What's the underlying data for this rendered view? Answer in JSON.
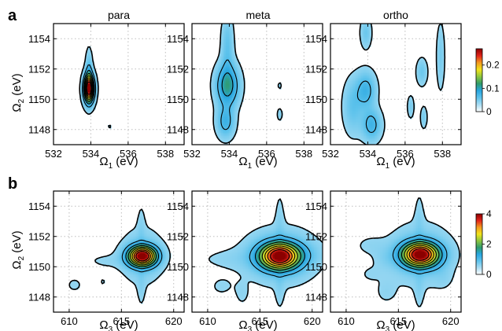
{
  "figure": {
    "panel_labels": [
      "a",
      "b"
    ],
    "panel_titles": [
      "para",
      "meta",
      "ortho"
    ],
    "row_a": {
      "x_label_symbol": "Ω",
      "x_label_sub": "1",
      "x_label_unit": "(eV)",
      "y_label_symbol": "Ω",
      "y_label_sub": "2",
      "y_label_unit": "(eV)",
      "x_ticks": [
        "532",
        "534",
        "536",
        "538"
      ],
      "y_ticks": [
        "1148",
        "1150",
        "1152",
        "1154"
      ],
      "colorbar_ticks": [
        "0",
        "0.1",
        "0.2"
      ]
    },
    "row_b": {
      "x_label_symbol": "Ω",
      "x_label_sub": "3",
      "x_label_unit": "(eV)",
      "y_label_symbol": "Ω",
      "y_label_sub": "2",
      "y_label_unit": "(eV)",
      "x_ticks": [
        "610",
        "615",
        "620"
      ],
      "y_ticks": [
        "1148",
        "1150",
        "1152",
        "1154"
      ],
      "colorbar_ticks": [
        "0",
        "2",
        "4"
      ]
    },
    "colormap": [
      "#ffffff",
      "#a9ddf3",
      "#5ec3ec",
      "#28a6e0",
      "#2f9b6a",
      "#8cc63f",
      "#f2e31b",
      "#f39a1f",
      "#e2231a",
      "#8b0000"
    ]
  },
  "chart_data": [
    {
      "type": "heatmap",
      "title": "para",
      "panel": "a",
      "xlabel": "Ω1 (eV)",
      "ylabel": "Ω2 (eV)",
      "xlim": [
        532,
        539
      ],
      "ylim": [
        1147,
        1155
      ],
      "zlim": [
        0,
        0.27
      ],
      "peaks": [
        {
          "x": 533.9,
          "y": 1150.7,
          "amp": 0.27,
          "sx": 0.18,
          "sy": 0.6
        },
        {
          "x": 533.9,
          "y": 1151.6,
          "amp": 0.04,
          "sx": 0.12,
          "sy": 1.0
        },
        {
          "x": 535.0,
          "y": 1148.2,
          "amp": 0.012,
          "sx": 0.05,
          "sy": 0.1
        }
      ]
    },
    {
      "type": "heatmap",
      "title": "meta",
      "panel": "a",
      "xlabel": "Ω1 (eV)",
      "ylabel": "Ω2 (eV)",
      "xlim": [
        532,
        539
      ],
      "ylim": [
        1147,
        1155
      ],
      "zlim": [
        0,
        0.27
      ],
      "peaks": [
        {
          "x": 533.9,
          "y": 1150.9,
          "amp": 0.09,
          "sx": 0.4,
          "sy": 0.9
        },
        {
          "x": 533.8,
          "y": 1148.5,
          "amp": 0.05,
          "sx": 0.32,
          "sy": 0.7
        },
        {
          "x": 533.9,
          "y": 1153.5,
          "amp": 0.03,
          "sx": 0.22,
          "sy": 1.4
        },
        {
          "x": 536.7,
          "y": 1150.9,
          "amp": 0.015,
          "sx": 0.06,
          "sy": 0.15
        },
        {
          "x": 536.7,
          "y": 1149.0,
          "amp": 0.015,
          "sx": 0.1,
          "sy": 0.3
        }
      ]
    },
    {
      "type": "heatmap",
      "title": "ortho",
      "panel": "a",
      "xlabel": "Ω1 (eV)",
      "ylabel": "Ω2 (eV)",
      "xlim": [
        532,
        539
      ],
      "ylim": [
        1147,
        1155
      ],
      "zlim": [
        0,
        0.27
      ],
      "peaks": [
        {
          "x": 533.9,
          "y": 1150.6,
          "amp": 0.05,
          "sx": 0.35,
          "sy": 0.8
        },
        {
          "x": 534.2,
          "y": 1148.3,
          "amp": 0.05,
          "sx": 0.35,
          "sy": 0.7
        },
        {
          "x": 533.2,
          "y": 1149.5,
          "amp": 0.03,
          "sx": 0.35,
          "sy": 1.2
        },
        {
          "x": 533.9,
          "y": 1154.4,
          "amp": 0.025,
          "sx": 0.2,
          "sy": 0.7
        },
        {
          "x": 536.9,
          "y": 1151.8,
          "amp": 0.025,
          "sx": 0.2,
          "sy": 0.6
        },
        {
          "x": 537.9,
          "y": 1152.8,
          "amp": 0.02,
          "sx": 0.15,
          "sy": 1.5
        },
        {
          "x": 536.3,
          "y": 1149.5,
          "amp": 0.02,
          "sx": 0.12,
          "sy": 0.5
        },
        {
          "x": 537.0,
          "y": 1148.8,
          "amp": 0.02,
          "sx": 0.12,
          "sy": 0.5
        }
      ]
    },
    {
      "type": "heatmap",
      "title": "para",
      "panel": "b",
      "xlabel": "Ω3 (eV)",
      "ylabel": "Ω2 (eV)",
      "xlim": [
        608.5,
        621
      ],
      "ylim": [
        1147,
        1155
      ],
      "zlim": [
        0,
        4
      ],
      "peaks": [
        {
          "x": 617.0,
          "y": 1150.7,
          "amp": 4.0,
          "sx": 0.9,
          "sy": 0.45
        },
        {
          "x": 617.0,
          "y": 1150.7,
          "amp": 0.3,
          "sx": 1.4,
          "sy": 1.3
        },
        {
          "x": 616.9,
          "y": 1152.6,
          "amp": 0.15,
          "sx": 0.25,
          "sy": 1.1
        },
        {
          "x": 616.9,
          "y": 1148.6,
          "amp": 0.15,
          "sx": 0.25,
          "sy": 0.9
        },
        {
          "x": 613.5,
          "y": 1150.4,
          "amp": 0.12,
          "sx": 1.6,
          "sy": 0.35
        },
        {
          "x": 610.5,
          "y": 1148.8,
          "amp": 0.12,
          "sx": 0.8,
          "sy": 0.5
        },
        {
          "x": 613.2,
          "y": 1149.0,
          "amp": 0.1,
          "sx": 0.5,
          "sy": 0.5
        }
      ]
    },
    {
      "type": "heatmap",
      "title": "meta",
      "panel": "b",
      "xlabel": "Ω3 (eV)",
      "ylabel": "Ω2 (eV)",
      "xlim": [
        608.5,
        621
      ],
      "ylim": [
        1147,
        1155
      ],
      "zlim": [
        0,
        4
      ],
      "peaks": [
        {
          "x": 616.9,
          "y": 1150.7,
          "amp": 4.0,
          "sx": 1.3,
          "sy": 0.6
        },
        {
          "x": 617.0,
          "y": 1150.7,
          "amp": 0.3,
          "sx": 2.6,
          "sy": 1.4
        },
        {
          "x": 616.9,
          "y": 1153.0,
          "amp": 0.15,
          "sx": 0.3,
          "sy": 1.5
        },
        {
          "x": 616.9,
          "y": 1148.5,
          "amp": 0.15,
          "sx": 0.3,
          "sy": 1.0
        },
        {
          "x": 612.0,
          "y": 1150.5,
          "amp": 0.12,
          "sx": 2.5,
          "sy": 0.5
        },
        {
          "x": 619.5,
          "y": 1150.8,
          "amp": 0.12,
          "sx": 1.2,
          "sy": 0.5
        },
        {
          "x": 611.3,
          "y": 1148.7,
          "amp": 0.12,
          "sx": 0.9,
          "sy": 0.5
        },
        {
          "x": 613.3,
          "y": 1148.2,
          "amp": 0.12,
          "sx": 0.5,
          "sy": 0.6
        }
      ]
    },
    {
      "type": "heatmap",
      "title": "ortho",
      "panel": "b",
      "xlabel": "Ω3 (eV)",
      "ylabel": "Ω2 (eV)",
      "xlim": [
        608.5,
        621
      ],
      "ylim": [
        1147,
        1155
      ],
      "zlim": [
        0,
        4
      ],
      "peaks": [
        {
          "x": 617.1,
          "y": 1150.8,
          "amp": 4.0,
          "sx": 1.2,
          "sy": 0.55
        },
        {
          "x": 617.1,
          "y": 1150.8,
          "amp": 0.3,
          "sx": 2.2,
          "sy": 1.5
        },
        {
          "x": 617.0,
          "y": 1153.1,
          "amp": 0.15,
          "sx": 0.3,
          "sy": 1.4
        },
        {
          "x": 617.0,
          "y": 1148.5,
          "amp": 0.15,
          "sx": 0.3,
          "sy": 1.0
        },
        {
          "x": 612.2,
          "y": 1151.4,
          "amp": 0.12,
          "sx": 1.1,
          "sy": 0.5
        },
        {
          "x": 613.7,
          "y": 1150.5,
          "amp": 0.12,
          "sx": 0.7,
          "sy": 0.5
        },
        {
          "x": 612.2,
          "y": 1149.5,
          "amp": 0.1,
          "sx": 0.8,
          "sy": 0.45
        },
        {
          "x": 613.8,
          "y": 1148.3,
          "amp": 0.12,
          "sx": 0.8,
          "sy": 0.6
        },
        {
          "x": 619.3,
          "y": 1149.3,
          "amp": 0.1,
          "sx": 0.6,
          "sy": 0.5
        }
      ]
    }
  ]
}
